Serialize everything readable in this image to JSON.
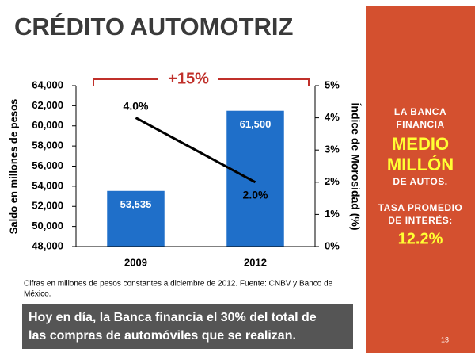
{
  "chart_data": {
    "type": "bar_line",
    "title": "CRÉDITO AUTOMOTRIZ",
    "categories": [
      "2009",
      "2012"
    ],
    "series": [
      {
        "type": "bar",
        "color": "#1f6fc9",
        "values": [
          53535,
          61500
        ],
        "value_labels": [
          "53,535",
          "61,500"
        ]
      },
      {
        "type": "line",
        "axis": "y2",
        "color": "#000000",
        "values": [
          4,
          2
        ],
        "value_labels": [
          "4.0%",
          "2.0%"
        ]
      }
    ],
    "ylim": [
      48000,
      64000
    ],
    "yticks": [
      {
        "value": 48000,
        "label": "48,000"
      },
      {
        "value": 50000,
        "label": "50,000"
      },
      {
        "value": 52000,
        "label": "52,000"
      },
      {
        "value": 54000,
        "label": "54,000"
      },
      {
        "value": 56000,
        "label": "56,000"
      },
      {
        "value": 58000,
        "label": "58,000"
      },
      {
        "value": 60000,
        "label": "60,000"
      },
      {
        "value": 62000,
        "label": "62,000"
      },
      {
        "value": 64000,
        "label": "64,000"
      }
    ],
    "y2lim": [
      0,
      5
    ],
    "y2ticks": [
      {
        "value": 0,
        "label": "0%"
      },
      {
        "value": 1,
        "label": "1%"
      },
      {
        "value": 2,
        "label": "2%"
      },
      {
        "value": 3,
        "label": "3%"
      },
      {
        "value": 4,
        "label": "4%"
      },
      {
        "value": 5,
        "label": "5%"
      }
    ],
    "y_label": "Saldo en millones de pesos",
    "y2_label": "Índice de Morosidad (%)",
    "annotation": "+15%"
  },
  "footnote": [
    "Cifras en millones de pesos constantes a diciembre de 2012. Fuente: CNBV y Banco de",
    "México."
  ],
  "banner": [
    "Hoy en día, la Banca financia el 30% del total de",
    "las compras de automóviles que se realizan."
  ],
  "sidebar": {
    "intro": [
      "LA BANCA",
      "FINANCIA"
    ],
    "highlight": [
      "MEDIO",
      "MILLÓN"
    ],
    "after": "DE AUTOS.",
    "rate_label": [
      "TASA PROMEDIO",
      "DE INTERÉS:"
    ],
    "rate": "12.2%"
  },
  "page_number": "13"
}
